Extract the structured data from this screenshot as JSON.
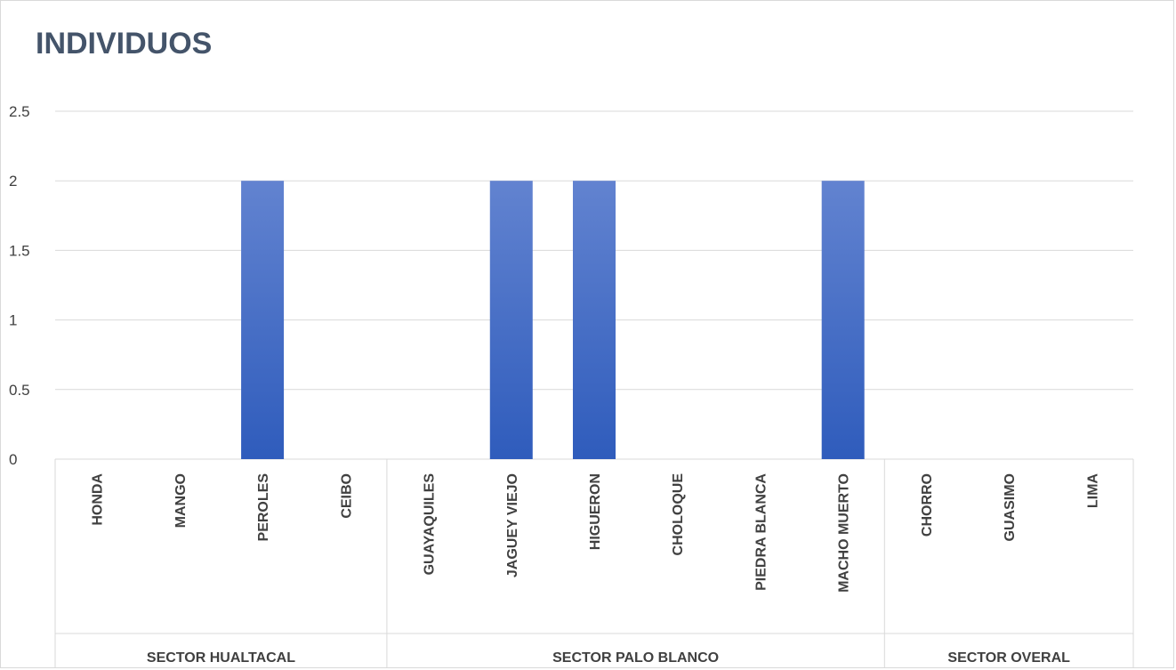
{
  "chart_data": {
    "type": "bar",
    "title": "INDIVIDUOS",
    "xlabel": "",
    "ylabel": "",
    "ylim": [
      0,
      2.5
    ],
    "yticks": [
      "0",
      "0.5",
      "1",
      "1.5",
      "2",
      "2.5"
    ],
    "grid": true,
    "categories": [
      "HONDA",
      "MANGO",
      "PEROLES",
      "CEIBO",
      "GUAYAQUILES",
      "JAGUEY VIEJO",
      "HIGUERON",
      "CHOLOQUE",
      "PIEDRA BLANCA",
      "MACHO MUERTO",
      "CHORRO",
      "GUASIMO",
      "LIMA"
    ],
    "values": [
      0,
      0,
      2,
      0,
      0,
      2,
      2,
      0,
      0,
      2,
      0,
      0,
      0
    ],
    "groups": [
      {
        "label": "SECTOR HUALTACAL",
        "count": 4
      },
      {
        "label": "SECTOR PALO BLANCO",
        "count": 6
      },
      {
        "label": "SECTOR OVERAL",
        "count": 3
      }
    ],
    "colors": {
      "bar_top": "#6283d0",
      "bar_bottom": "#2f5cbc",
      "grid": "#d9d9d9",
      "text": "#404040",
      "title": "#44546a"
    }
  }
}
